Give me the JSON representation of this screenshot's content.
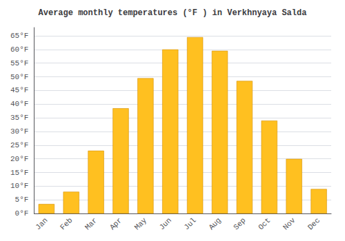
{
  "chart_data": {
    "type": "bar",
    "title": "Average monthly temperatures (°F ) in Verkhnyaya Salda",
    "categories": [
      "Jan",
      "Feb",
      "Mar",
      "Apr",
      "May",
      "Jun",
      "Jul",
      "Aug",
      "Sep",
      "Oct",
      "Nov",
      "Dec"
    ],
    "values": [
      3.5,
      8.0,
      23.0,
      38.5,
      49.5,
      60.0,
      64.5,
      59.5,
      48.5,
      34.0,
      20.0,
      9.0
    ],
    "color": "#FFC020",
    "ylim": [
      0,
      68
    ],
    "yticks": [
      {
        "value": 0,
        "label": "0°F"
      },
      {
        "value": 5,
        "label": "5°F"
      },
      {
        "value": 10,
        "label": "10°F"
      },
      {
        "value": 15,
        "label": "15°F"
      },
      {
        "value": 20,
        "label": "20°F"
      },
      {
        "value": 25,
        "label": "25°F"
      },
      {
        "value": 30,
        "label": "30°F"
      },
      {
        "value": 35,
        "label": "35°F"
      },
      {
        "value": 40,
        "label": "40°F"
      },
      {
        "value": 45,
        "label": "45°F"
      },
      {
        "value": 50,
        "label": "50°F"
      },
      {
        "value": 55,
        "label": "55°F"
      },
      {
        "value": 60,
        "label": "60°F"
      },
      {
        "value": 65,
        "label": "65°F"
      }
    ],
    "grid": true
  }
}
